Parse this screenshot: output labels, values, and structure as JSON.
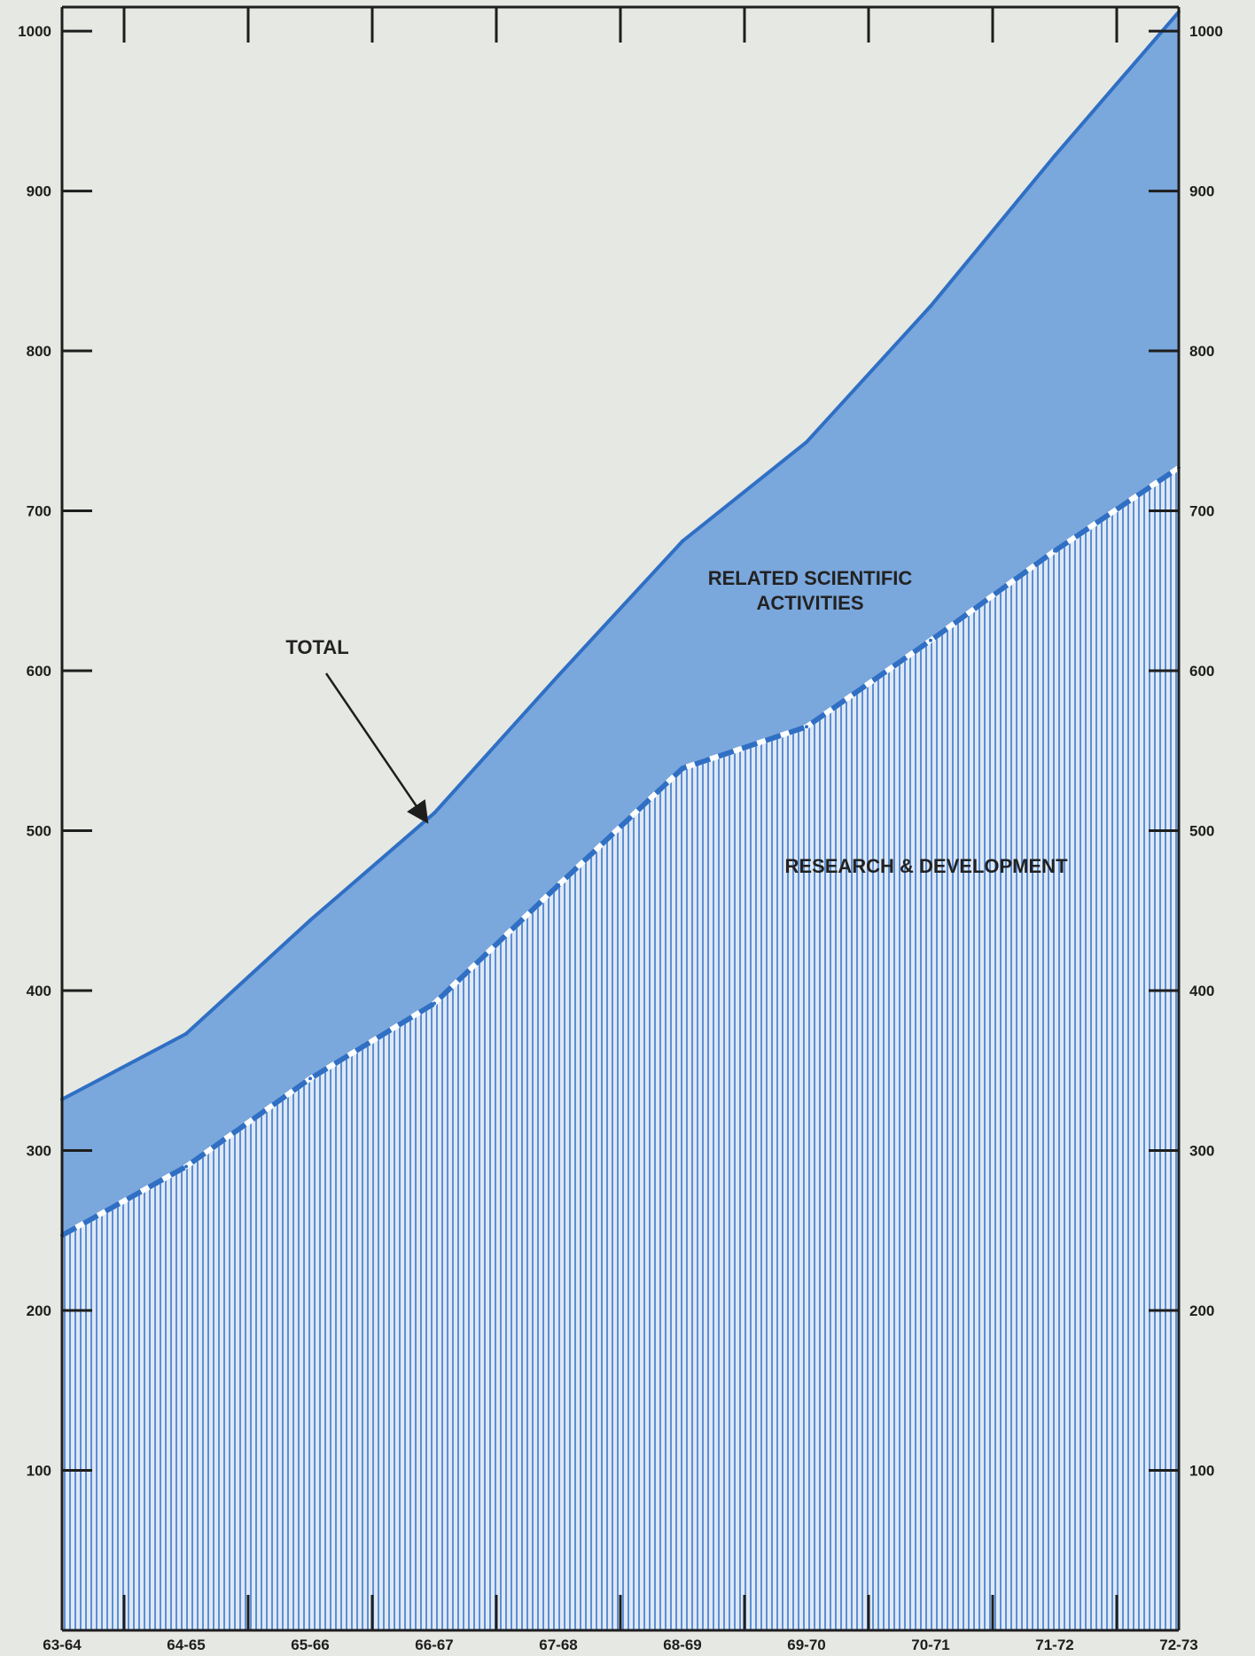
{
  "chart_data": {
    "type": "area",
    "title": "",
    "xlabel": "",
    "ylabel": "",
    "categories": [
      "63-64",
      "64-65",
      "65-66",
      "66-67",
      "67-68",
      "68-69",
      "69-70",
      "70-71",
      "71-72",
      "72-73"
    ],
    "series": [
      {
        "name": "TOTAL",
        "values": [
          332,
          373,
          444,
          511,
          597,
          681,
          743,
          828,
          922,
          1012
        ],
        "style": "solid-line"
      },
      {
        "name": "RESEARCH & DEVELOPMENT",
        "values": [
          247,
          290,
          345,
          392,
          466,
          539,
          565,
          619,
          675,
          727
        ],
        "style": "dashed-line"
      }
    ],
    "area_labels": {
      "between_total_and_rd": "RELATED SCIENTIFIC ACTIVITIES",
      "below_rd": "RESEARCH & DEVELOPMENT"
    },
    "annotations": [
      {
        "text": "TOTAL",
        "points_to": "TOTAL",
        "category": "66-67"
      }
    ],
    "y_ticks_left": [
      100,
      200,
      300,
      400,
      500,
      600,
      700,
      800,
      900,
      1000
    ],
    "y_ticks_right": [
      100,
      200,
      300,
      400,
      500,
      600,
      700,
      800,
      900,
      1000
    ],
    "ylim": [
      0,
      1015
    ],
    "grid": false,
    "legend": "none",
    "colors": {
      "background": "#e6e8e3",
      "upper_band": "#7aa7dc",
      "total_line": "#2f6fc4",
      "rd_stripes": "#5b8fd6",
      "rd_fill": "#dfe8f3",
      "axis": "#1e1e1e"
    }
  }
}
